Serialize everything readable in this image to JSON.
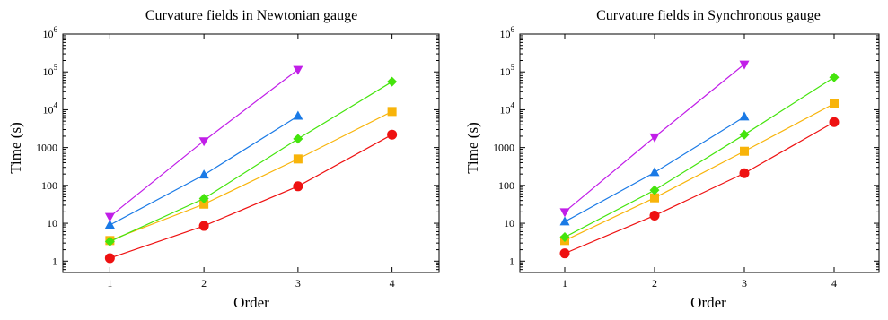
{
  "chart_data": [
    {
      "type": "line",
      "title": "Curvature fields in Newtonian gauge",
      "xlabel": "Order",
      "ylabel": "Time (s)",
      "yscale": "log",
      "xlim": [
        0.5,
        4.5
      ],
      "ylim": [
        0.5,
        1000000
      ],
      "grid": false,
      "x_ticks": [
        "1",
        "2",
        "3",
        "4"
      ],
      "y_ticks": [
        {
          "value": 1,
          "label": "1"
        },
        {
          "value": 10,
          "label": "10"
        },
        {
          "value": 100,
          "label": "100"
        },
        {
          "value": 1000,
          "label": "1000"
        },
        {
          "value": 10000,
          "label": "10",
          "exp": "4"
        },
        {
          "value": 100000,
          "label": "10",
          "exp": "5"
        },
        {
          "value": 1000000,
          "label": "10",
          "exp": "6"
        }
      ],
      "series": [
        {
          "color": "#ee1111",
          "marker": "circle",
          "x": [
            1,
            2,
            3,
            4
          ],
          "y": [
            1.2,
            8.5,
            95,
            2200
          ]
        },
        {
          "color": "#f8b40a",
          "marker": "square",
          "x": [
            1,
            2,
            3,
            4
          ],
          "y": [
            3.5,
            32,
            500,
            9000
          ]
        },
        {
          "color": "#44e40c",
          "marker": "diamond",
          "x": [
            1,
            2,
            3,
            4
          ],
          "y": [
            3.3,
            45,
            1700,
            55000
          ]
        },
        {
          "color": "#1a7ae6",
          "marker": "triangle-up",
          "x": [
            1,
            2,
            3
          ],
          "y": [
            9,
            190,
            6800
          ]
        },
        {
          "color": "#c11ee8",
          "marker": "triangle-down",
          "x": [
            1,
            2,
            3
          ],
          "y": [
            15,
            1500,
            115000
          ]
        }
      ]
    },
    {
      "type": "line",
      "title": "Curvature fields in Synchronous gauge",
      "xlabel": "Order",
      "ylabel": "Time (s)",
      "yscale": "log",
      "xlim": [
        0.5,
        4.5
      ],
      "ylim": [
        0.5,
        1000000
      ],
      "grid": false,
      "x_ticks": [
        "1",
        "2",
        "3",
        "4"
      ],
      "y_ticks": [
        {
          "value": 1,
          "label": "1"
        },
        {
          "value": 10,
          "label": "10"
        },
        {
          "value": 100,
          "label": "100"
        },
        {
          "value": 1000,
          "label": "1000"
        },
        {
          "value": 10000,
          "label": "10",
          "exp": "4"
        },
        {
          "value": 100000,
          "label": "10",
          "exp": "5"
        },
        {
          "value": 1000000,
          "label": "10",
          "exp": "6"
        }
      ],
      "series": [
        {
          "color": "#ee1111",
          "marker": "circle",
          "x": [
            1,
            2,
            3,
            4
          ],
          "y": [
            1.6,
            16,
            210,
            4700
          ]
        },
        {
          "color": "#f8b40a",
          "marker": "square",
          "x": [
            1,
            2,
            3,
            4
          ],
          "y": [
            3.5,
            47,
            800,
            14500
          ]
        },
        {
          "color": "#44e40c",
          "marker": "diamond",
          "x": [
            1,
            2,
            3,
            4
          ],
          "y": [
            4.3,
            75,
            2200,
            72000
          ]
        },
        {
          "color": "#1a7ae6",
          "marker": "triangle-up",
          "x": [
            1,
            2,
            3
          ],
          "y": [
            11,
            220,
            6500
          ]
        },
        {
          "color": "#c11ee8",
          "marker": "triangle-down",
          "x": [
            1,
            2,
            3
          ],
          "y": [
            20,
            1900,
            160000
          ]
        }
      ]
    }
  ]
}
